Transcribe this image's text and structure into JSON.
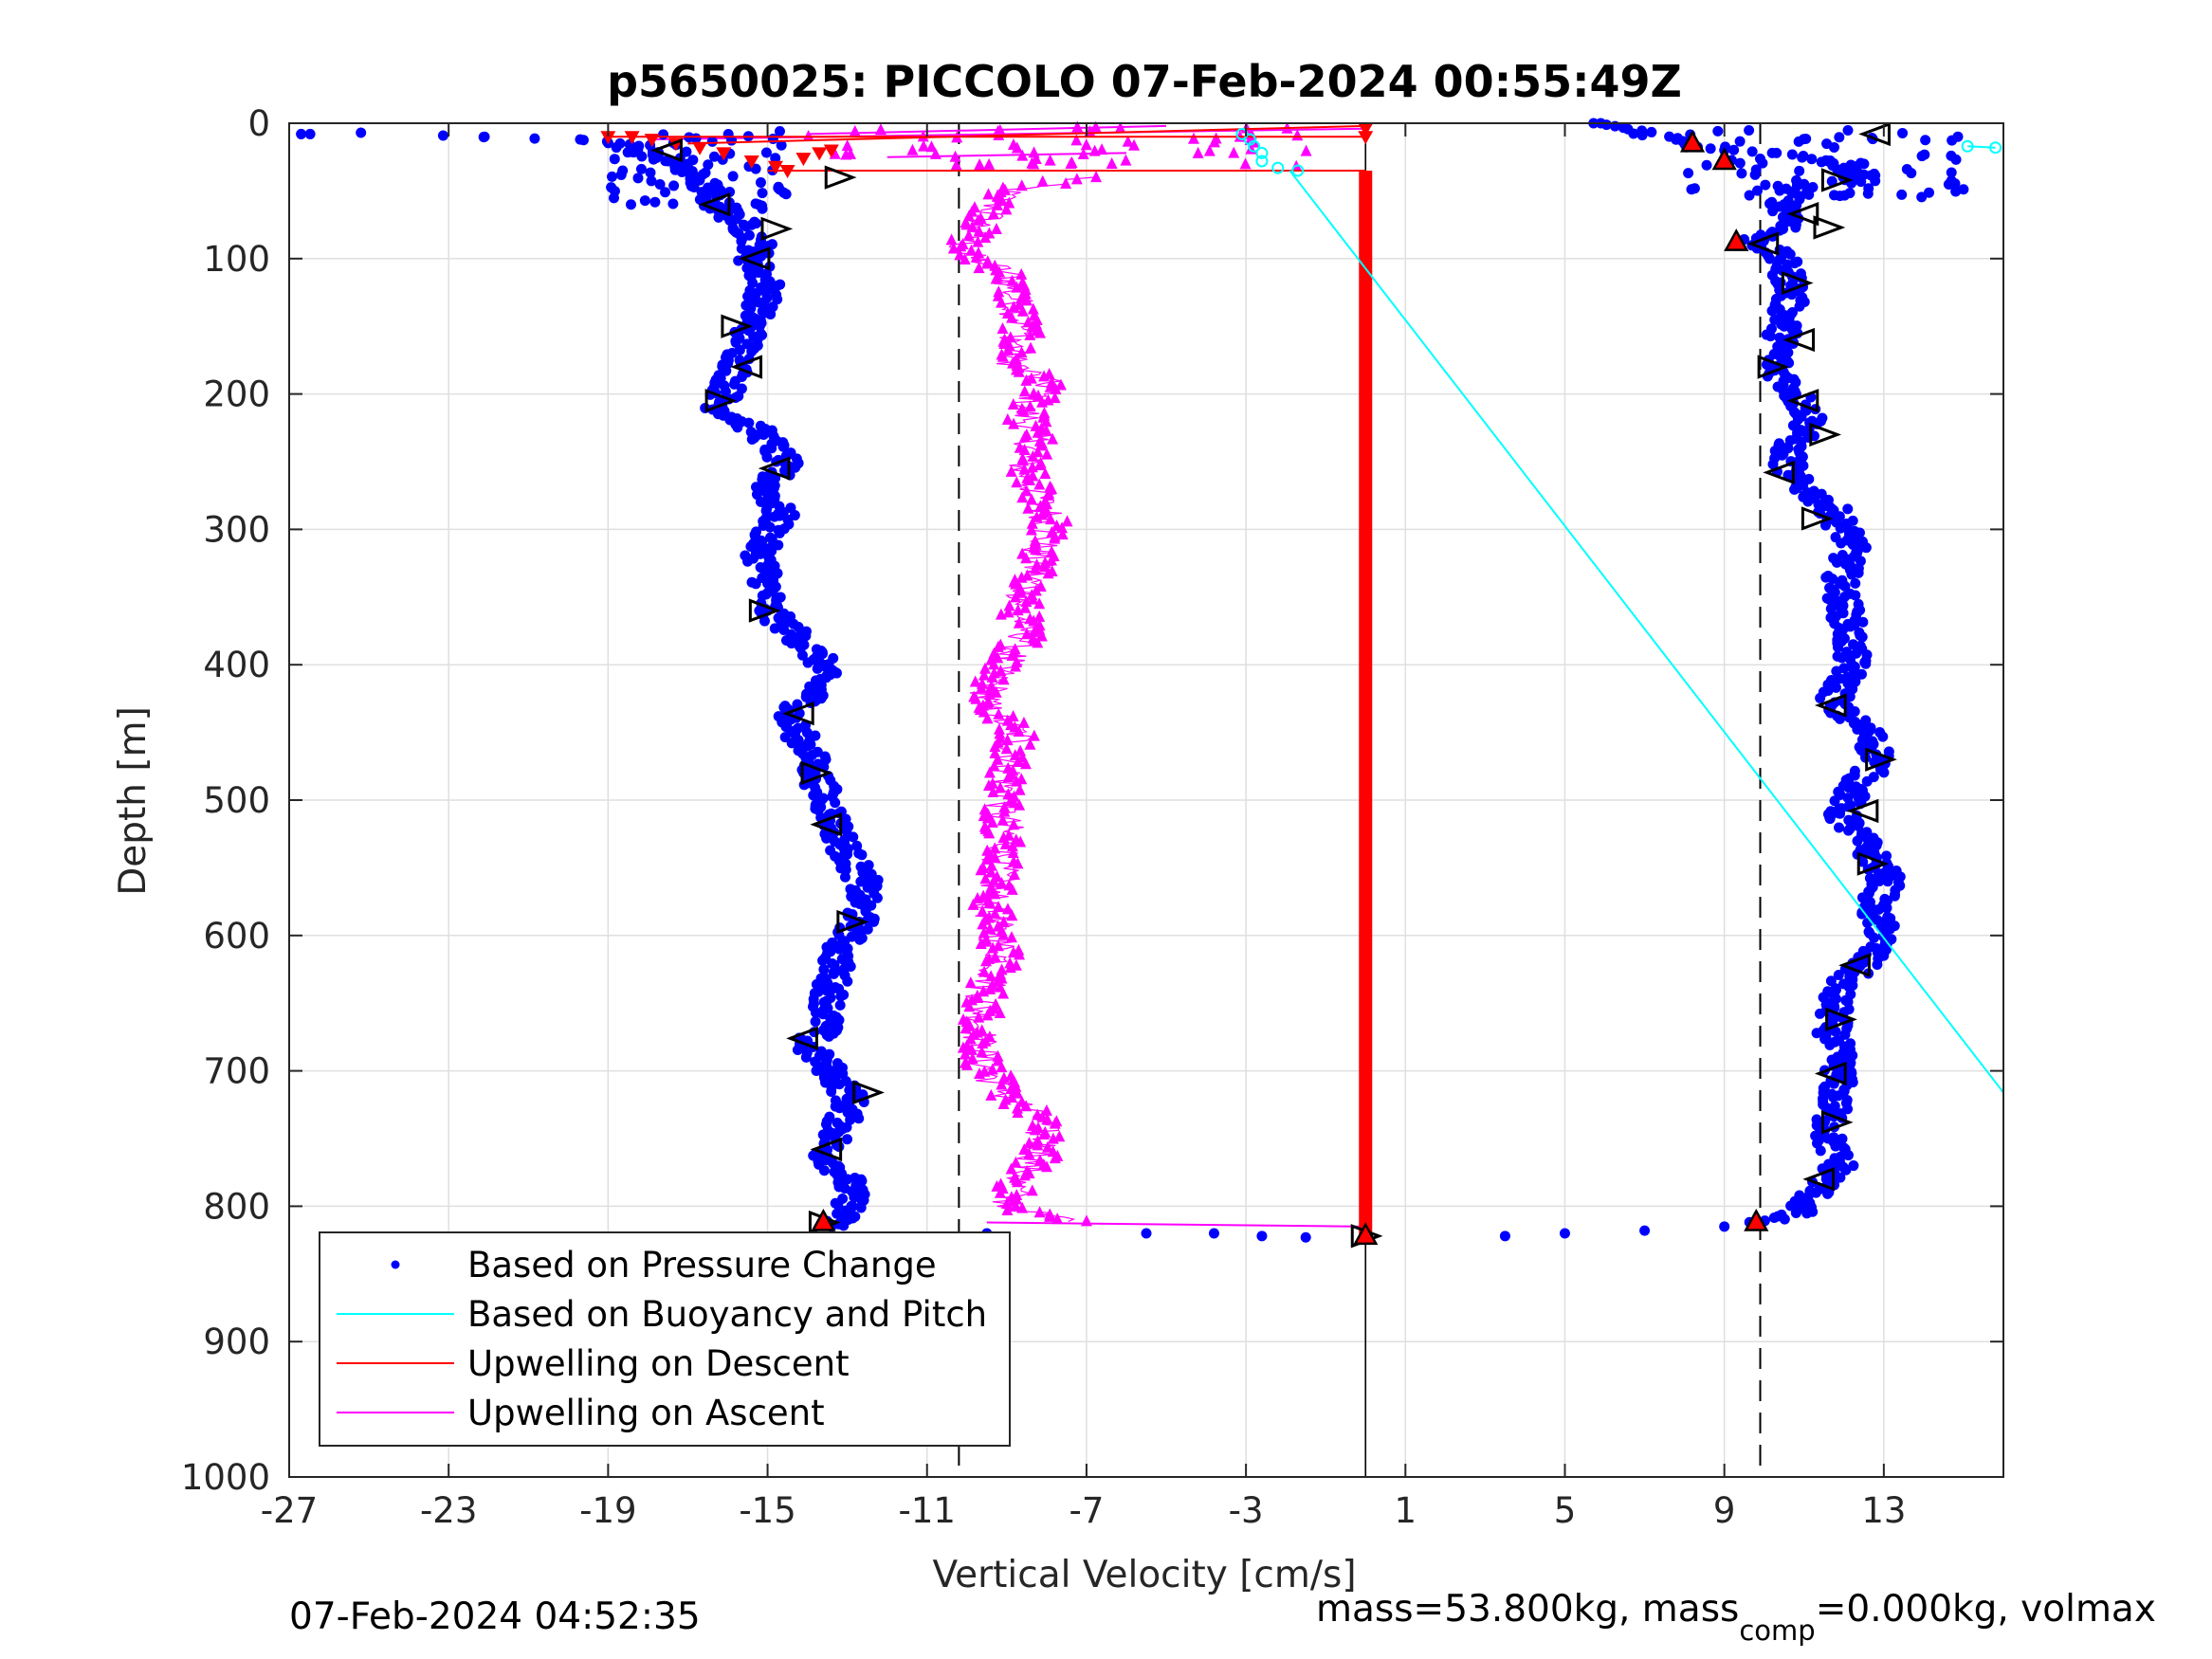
{
  "chart_data": {
    "type": "scatter",
    "title": "p5650025: PICCOLO 07-Feb-2024 00:55:49Z",
    "xlabel": "Vertical Velocity [cm/s]",
    "ylabel": "Depth [m]",
    "xlim": [
      -27,
      16
    ],
    "ylim": [
      0,
      1000
    ],
    "y_reversed": true,
    "grid": true,
    "x_ticks": [
      -27,
      -23,
      -19,
      -15,
      -11,
      -7,
      -3,
      1,
      5,
      9,
      13
    ],
    "y_ticks": [
      0,
      100,
      200,
      300,
      400,
      500,
      600,
      700,
      800,
      900,
      1000
    ],
    "reference_lines": {
      "dashed_x": [
        -10.2,
        9.9
      ],
      "solid_x": [
        0
      ]
    },
    "legend": {
      "placement": "bottom-left",
      "entries": [
        {
          "label": "Based on Pressure Change",
          "color": "#0000ff",
          "marker": "dot"
        },
        {
          "label": "Based on Buoyancy and Pitch",
          "color": "#00ffff",
          "marker": "line"
        },
        {
          "label": "Upwelling on Descent",
          "color": "#ff0000",
          "marker": "line"
        },
        {
          "label": "Upwelling on Ascent",
          "color": "#ff00ff",
          "marker": "line"
        }
      ]
    },
    "series": [
      {
        "name": "Based on Pressure Change",
        "color": "#0000ff",
        "descent_profile": [
          [
            -26.7,
            8
          ],
          [
            -25.2,
            7
          ],
          [
            -22.1,
            10
          ],
          [
            -19.7,
            12
          ],
          [
            -18.7,
            15
          ],
          [
            -17.5,
            28
          ],
          [
            -16.7,
            40
          ],
          [
            -16.3,
            60
          ],
          [
            -15.6,
            75
          ],
          [
            -15.2,
            90
          ],
          [
            -15.4,
            100
          ],
          [
            -15.0,
            120
          ],
          [
            -15.4,
            150
          ],
          [
            -15.7,
            175
          ],
          [
            -16.2,
            210
          ],
          [
            -15.1,
            230
          ],
          [
            -14.6,
            250
          ],
          [
            -15.0,
            270
          ],
          [
            -14.7,
            290
          ],
          [
            -15.2,
            315
          ],
          [
            -15.0,
            340
          ],
          [
            -15.0,
            360
          ],
          [
            -14.2,
            380
          ],
          [
            -13.6,
            400
          ],
          [
            -13.8,
            420
          ],
          [
            -14.5,
            440
          ],
          [
            -14.0,
            460
          ],
          [
            -13.8,
            480
          ],
          [
            -13.4,
            510
          ],
          [
            -13.0,
            540
          ],
          [
            -12.6,
            560
          ],
          [
            -12.7,
            590
          ],
          [
            -13.2,
            610
          ],
          [
            -13.4,
            640
          ],
          [
            -13.6,
            670
          ],
          [
            -14.1,
            680
          ],
          [
            -13.4,
            700
          ],
          [
            -12.9,
            720
          ],
          [
            -13.3,
            750
          ],
          [
            -13.6,
            760
          ],
          [
            -13.0,
            780
          ],
          [
            -12.9,
            800
          ],
          [
            -13.4,
            815
          ],
          [
            -9.5,
            820
          ],
          [
            -5.5,
            820
          ],
          [
            -3.8,
            820
          ],
          [
            -2.6,
            822
          ],
          [
            -1.5,
            823
          ]
        ],
        "ascent_profile": [
          [
            5.9,
            0
          ],
          [
            8.2,
            15
          ],
          [
            9.0,
            20
          ],
          [
            10.2,
            22
          ],
          [
            11.6,
            28
          ],
          [
            12.5,
            38
          ],
          [
            11.0,
            45
          ],
          [
            10.5,
            60
          ],
          [
            10.8,
            75
          ],
          [
            9.8,
            85
          ],
          [
            10.4,
            100
          ],
          [
            10.7,
            120
          ],
          [
            10.5,
            150
          ],
          [
            10.3,
            180
          ],
          [
            10.8,
            200
          ],
          [
            11.2,
            220
          ],
          [
            10.6,
            240
          ],
          [
            10.6,
            260
          ],
          [
            11.7,
            285
          ],
          [
            12.2,
            310
          ],
          [
            11.9,
            340
          ],
          [
            12.1,
            370
          ],
          [
            12.2,
            400
          ],
          [
            11.7,
            430
          ],
          [
            12.6,
            450
          ],
          [
            12.9,
            470
          ],
          [
            12.3,
            490
          ],
          [
            11.9,
            510
          ],
          [
            12.7,
            540
          ],
          [
            13.1,
            560
          ],
          [
            12.7,
            580
          ],
          [
            13.0,
            600
          ],
          [
            12.5,
            620
          ],
          [
            11.8,
            640
          ],
          [
            11.7,
            670
          ],
          [
            11.9,
            700
          ],
          [
            11.7,
            730
          ],
          [
            11.6,
            750
          ],
          [
            11.9,
            770
          ],
          [
            11.3,
            790
          ],
          [
            10.8,
            805
          ],
          [
            9.8,
            812
          ],
          [
            9.0,
            815
          ],
          [
            7.0,
            818
          ],
          [
            5.0,
            820
          ],
          [
            3.5,
            822
          ]
        ],
        "triangles": [
          [
            -17.5,
            20
          ],
          [
            -13.2,
            40
          ],
          [
            -16.3,
            60
          ],
          [
            -14.8,
            78
          ],
          [
            -15.3,
            100
          ],
          [
            -15.8,
            150
          ],
          [
            -15.5,
            180
          ],
          [
            -16.2,
            205
          ],
          [
            -14.8,
            255
          ],
          [
            -15.1,
            360
          ],
          [
            -14.2,
            436
          ],
          [
            -13.8,
            480
          ],
          [
            -13.5,
            518
          ],
          [
            -12.9,
            590
          ],
          [
            -14.1,
            676
          ],
          [
            -12.5,
            716
          ],
          [
            -13.5,
            758
          ],
          [
            -13.6,
            812
          ],
          [
            12.8,
            8
          ],
          [
            11.8,
            42
          ],
          [
            11.0,
            67
          ],
          [
            11.6,
            77
          ],
          [
            10.0,
            89
          ],
          [
            10.8,
            118
          ],
          [
            10.9,
            160
          ],
          [
            10.2,
            180
          ],
          [
            11.0,
            205
          ],
          [
            11.5,
            230
          ],
          [
            10.4,
            258
          ],
          [
            11.3,
            292
          ],
          [
            11.7,
            430
          ],
          [
            12.9,
            470
          ],
          [
            12.5,
            508
          ],
          [
            12.7,
            547
          ],
          [
            12.3,
            622
          ],
          [
            11.9,
            662
          ],
          [
            11.7,
            702
          ],
          [
            11.8,
            738
          ],
          [
            11.4,
            780
          ],
          [
            0.0,
            822
          ]
        ]
      },
      {
        "name": "Based on Buoyancy and Pitch",
        "color": "#00ffff",
        "line": [
          [
            -1.9,
            35
          ],
          [
            16.0,
            716
          ]
        ],
        "surface_points": [
          [
            -3.1,
            8
          ],
          [
            -2.9,
            12
          ],
          [
            -2.8,
            17
          ],
          [
            -2.6,
            22
          ],
          [
            -2.6,
            28
          ],
          [
            -2.2,
            33
          ],
          [
            -1.7,
            35
          ],
          [
            15.1,
            17
          ],
          [
            15.8,
            18
          ]
        ]
      },
      {
        "name": "Upwelling on Descent",
        "color": "#ff0000",
        "vertical_line": {
          "x": 0.0,
          "from": 35,
          "to": 822
        },
        "surface_segments": [
          [
            [
              -19.0,
              10
            ],
            [
              0.0,
              10
            ]
          ],
          [
            [
              -17.0,
              15
            ],
            [
              0.0,
              2
            ]
          ],
          [
            [
              -15.0,
              35
            ],
            [
              0.0,
              35
            ]
          ]
        ],
        "surface_points": [
          [
            -19.0,
            10
          ],
          [
            -18.4,
            10
          ],
          [
            -17.9,
            12
          ],
          [
            -17.3,
            15
          ],
          [
            -16.7,
            18
          ],
          [
            -16.1,
            22
          ],
          [
            -15.4,
            28
          ],
          [
            -14.8,
            32
          ],
          [
            -14.5,
            35
          ],
          [
            -14.1,
            26
          ],
          [
            -13.7,
            22
          ],
          [
            -13.4,
            20
          ],
          [
            0.0,
            4
          ],
          [
            0.0,
            10
          ]
        ],
        "ascent_triangles": [
          [
            8.2,
            15
          ],
          [
            9.0,
            28
          ],
          [
            9.3,
            88
          ],
          [
            9.8,
            812
          ],
          [
            -13.6,
            812
          ],
          [
            0.0,
            822
          ]
        ]
      },
      {
        "name": "Upwelling on Ascent",
        "color": "#ff00ff",
        "profile": [
          [
            -10.4,
            5
          ],
          [
            -6.0,
            35
          ],
          [
            -9.0,
            50
          ],
          [
            -9.5,
            70
          ],
          [
            -10.2,
            95
          ],
          [
            -9.0,
            110
          ],
          [
            -8.8,
            130
          ],
          [
            -8.6,
            150
          ],
          [
            -8.9,
            175
          ],
          [
            -7.9,
            195
          ],
          [
            -8.6,
            210
          ],
          [
            -8.3,
            235
          ],
          [
            -8.6,
            255
          ],
          [
            -8.2,
            275
          ],
          [
            -7.9,
            295
          ],
          [
            -8.2,
            315
          ],
          [
            -8.4,
            340
          ],
          [
            -8.7,
            360
          ],
          [
            -8.5,
            380
          ],
          [
            -9.1,
            400
          ],
          [
            -9.6,
            430
          ],
          [
            -8.7,
            450
          ],
          [
            -8.9,
            470
          ],
          [
            -9.0,
            490
          ],
          [
            -9.1,
            510
          ],
          [
            -9.0,
            530
          ],
          [
            -9.2,
            555
          ],
          [
            -9.4,
            575
          ],
          [
            -9.3,
            595
          ],
          [
            -9.1,
            615
          ],
          [
            -9.5,
            640
          ],
          [
            -9.6,
            660
          ],
          [
            -9.7,
            680
          ],
          [
            -9.5,
            700
          ],
          [
            -9.1,
            715
          ],
          [
            -8.2,
            735
          ],
          [
            -8.1,
            760
          ],
          [
            -8.7,
            780
          ],
          [
            -9.0,
            800
          ],
          [
            -7.3,
            812
          ],
          [
            0.0,
            815
          ]
        ],
        "surface_segments": [
          [
            [
              -18.0,
              12
            ],
            [
              0.0,
              4
            ]
          ],
          [
            [
              -14.0,
              8
            ],
            [
              -5.0,
              2
            ]
          ],
          [
            [
              -12.0,
              25
            ],
            [
              -6.0,
              22
            ]
          ]
        ]
      }
    ]
  },
  "footer": {
    "timestamp": "07-Feb-2024 04:52:35",
    "mass_text": "mass=53.800kg, mass",
    "mass_sub": "comp",
    "mass_tail": "=0.000kg, volmax"
  }
}
